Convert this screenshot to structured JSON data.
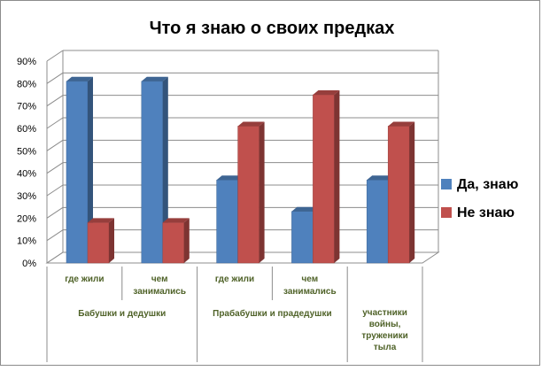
{
  "chart_data": {
    "type": "bar",
    "title": "Что я знаю о своих предках",
    "ylim": [
      0,
      90
    ],
    "yticks": [
      "0%",
      "10%",
      "20%",
      "30%",
      "40%",
      "50%",
      "60%",
      "70%",
      "80%",
      "90%"
    ],
    "grid": true,
    "legend_position": "right",
    "categories": [
      {
        "label": [
          "где жили"
        ],
        "group": 0
      },
      {
        "label": [
          "чем",
          "занимались"
        ],
        "group": 0
      },
      {
        "label": [
          "где жили"
        ],
        "group": 1
      },
      {
        "label": [
          "чем",
          "занимались"
        ],
        "group": 1
      },
      {
        "label": [],
        "group": 2
      }
    ],
    "groups": [
      {
        "label": [
          "Бабушки и дедушки"
        ]
      },
      {
        "label": [
          "Прабабушки и прадедушки"
        ]
      },
      {
        "label": [
          "участники",
          "войны,",
          "труженики",
          "тыла"
        ]
      }
    ],
    "series": [
      {
        "name": "Да, знаю",
        "color": "#4f81bd",
        "values": [
          81,
          81,
          37,
          23,
          37
        ]
      },
      {
        "name": "Не знаю",
        "color": "#c0504d",
        "values": [
          18,
          18,
          61,
          75,
          61
        ]
      }
    ]
  }
}
